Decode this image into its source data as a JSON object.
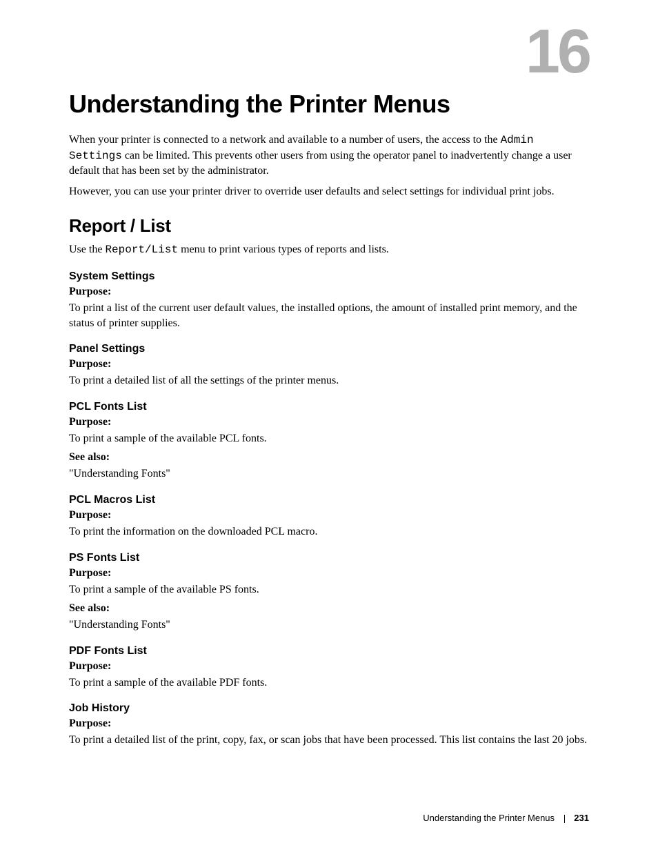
{
  "chapter_number": "16",
  "main_title": "Understanding the Printer Menus",
  "intro_paragraph_1_pre": "When your printer is connected to a network and available to a number of users, the access to the ",
  "intro_code_1": "Admin Settings",
  "intro_paragraph_1_post": " can be limited. This prevents other users from using the operator panel to inadvertently change a user default that has been set by the administrator.",
  "intro_paragraph_2": "However, you can use your printer driver to override user defaults and select settings for individual print jobs.",
  "section_title": "Report / List",
  "section_intro_pre": "Use the ",
  "section_intro_code": "Report/List",
  "section_intro_post": " menu to print various types of reports and lists.",
  "subsections": [
    {
      "title": "System Settings",
      "items": [
        {
          "label": "Purpose:",
          "text": "To print a list of the current user default values, the installed options, the amount of installed print memory, and the status of printer supplies."
        }
      ]
    },
    {
      "title": "Panel Settings",
      "items": [
        {
          "label": "Purpose:",
          "text": "To print a detailed list of all the settings of the printer menus."
        }
      ]
    },
    {
      "title": "PCL Fonts List",
      "items": [
        {
          "label": "Purpose:",
          "text": "To print a sample of the available PCL fonts."
        },
        {
          "label": "See also:",
          "text": "\"Understanding Fonts\""
        }
      ]
    },
    {
      "title": "PCL Macros List",
      "items": [
        {
          "label": "Purpose:",
          "text": "To print the information on the downloaded PCL macro."
        }
      ]
    },
    {
      "title": "PS Fonts List",
      "items": [
        {
          "label": "Purpose:",
          "text": "To print a sample of the available PS fonts."
        },
        {
          "label": "See also:",
          "text": "\"Understanding Fonts\""
        }
      ]
    },
    {
      "title": "PDF Fonts List",
      "items": [
        {
          "label": "Purpose:",
          "text": "To print a sample of the available PDF fonts."
        }
      ]
    },
    {
      "title": "Job History",
      "items": [
        {
          "label": "Purpose:",
          "text": "To print a detailed list of the print, copy, fax, or scan jobs that have been processed. This list contains the last 20 jobs."
        }
      ]
    }
  ],
  "footer_text": "Understanding the Printer Menus",
  "footer_page": "231",
  "style": {
    "background_color": "#ffffff",
    "body_text_color": "#000000",
    "chapter_number_color": "#b0b0b0",
    "chapter_number_fontsize_pt": 68,
    "main_title_fontsize_pt": 27,
    "section_title_fontsize_pt": 20,
    "sub_title_fontsize_pt": 12,
    "body_fontsize_pt": 12,
    "footer_fontsize_pt": 10,
    "heading_font_family": "Arial Narrow",
    "body_font_family": "Georgia",
    "mono_font_family": "Courier New"
  }
}
